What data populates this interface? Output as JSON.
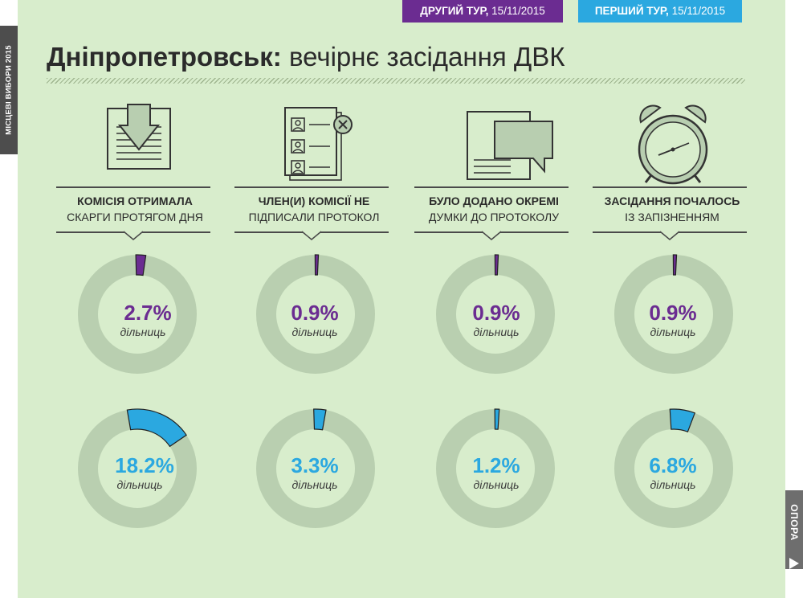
{
  "side_label": "МІСЦЕВІ ВИБОРИ 2015",
  "brand": "ОПОРА",
  "badges": {
    "round2": {
      "bold": "ДРУГИЙ ТУР,",
      "date": " 15/11/2015",
      "color": "#6b2c91"
    },
    "round1": {
      "bold": "ПЕРШИЙ ТУР,",
      "date": " 15/11/2015",
      "color": "#2ba8e0"
    }
  },
  "title": {
    "city": "Дніпропетровськ:",
    "rest": " вечірнє засідання ДВК"
  },
  "columns": [
    {
      "icon": "complaint-document-icon",
      "line1": "КОМІСІЯ ОТРИМАЛА",
      "line2": "СКАРГИ ПРОТЯГОМ ДНЯ",
      "round2": {
        "value": 2.7,
        "label": "2.7%",
        "unit": "дільниць"
      },
      "round1": {
        "value": 18.2,
        "label": "18.2%",
        "unit": "дільниць"
      }
    },
    {
      "icon": "unsigned-protocol-icon",
      "line1": "ЧЛЕН(И) КОМІСІЇ НЕ",
      "line2": "ПІДПИСАЛИ ПРОТОКОЛ",
      "round2": {
        "value": 0.9,
        "label": "0.9%",
        "unit": "дільниць"
      },
      "round1": {
        "value": 3.3,
        "label": "3.3%",
        "unit": "дільниць"
      }
    },
    {
      "icon": "separate-opinion-icon",
      "line1": "БУЛО ДОДАНО ОКРЕМІ",
      "line2": "ДУМКИ ДО ПРОТОКОЛУ",
      "round2": {
        "value": 0.9,
        "label": "0.9%",
        "unit": "дільниць"
      },
      "round1": {
        "value": 1.2,
        "label": "1.2%",
        "unit": "дільниць"
      }
    },
    {
      "icon": "alarm-clock-icon",
      "line1": "ЗАСІДАННЯ ПОЧАЛОСЬ",
      "line2": "ІЗ ЗАПІЗНЕННЯМ",
      "round2": {
        "value": 0.9,
        "label": "0.9%",
        "unit": "дільниць"
      },
      "round1": {
        "value": 6.8,
        "label": "6.8%",
        "unit": "дільниць"
      }
    }
  ],
  "colors": {
    "background": "#d8edcc",
    "ring_track": "#b9cfb0",
    "round2": "#6b2c91",
    "round1": "#2ba8e0",
    "icon_fill": "#b8ceb0",
    "icon_stroke": "#333333"
  }
}
